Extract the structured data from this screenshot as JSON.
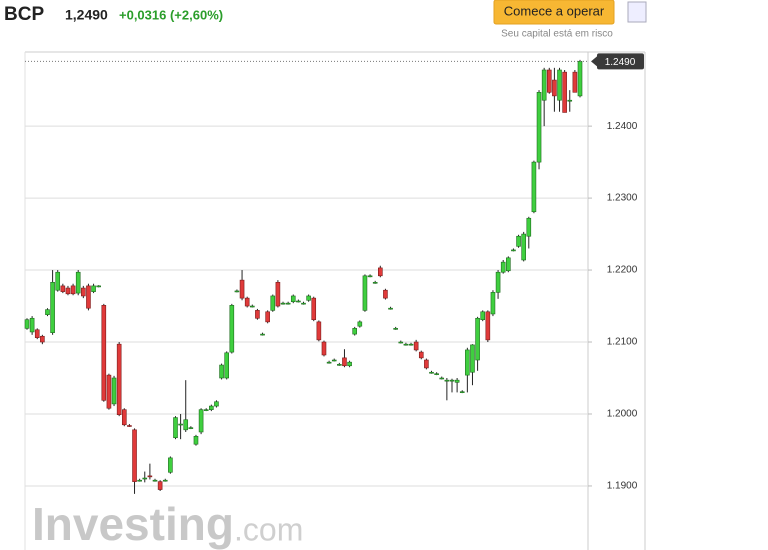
{
  "header": {
    "symbol": "BCP",
    "price": "1,2490",
    "change": "+0,0316 (+2,60%)",
    "button": "Comece a operar",
    "risk": "Seu capital está em risco"
  },
  "watermark": {
    "brand": "Investing",
    "suffix": ".com"
  },
  "chart_data": {
    "type": "candlestick",
    "up_color": "#3fcf3f",
    "down_color": "#e03a3a",
    "ylim": [
      1.1811,
      1.2503
    ],
    "yticks": [
      {
        "value": 1.19,
        "label": "1.1900"
      },
      {
        "value": 1.2,
        "label": "1.2000"
      },
      {
        "value": 1.21,
        "label": "1.2100"
      },
      {
        "value": 1.22,
        "label": "1.2200"
      },
      {
        "value": 1.23,
        "label": "1.2300"
      },
      {
        "value": 1.24,
        "label": "1.2400"
      }
    ],
    "grid": true,
    "last_price": {
      "value": 1.249,
      "label": "1.2490"
    },
    "open": [
      1.2119,
      1.2114,
      1.2117,
      1.2108,
      1.2138,
      1.2113,
      1.2172,
      1.2178,
      1.2175,
      1.2178,
      1.2168,
      1.2175,
      1.2178,
      1.217,
      1.2177,
      1.2151,
      1.2054,
      1.2014,
      1.2097,
      1.2006,
      1.1984,
      1.1978,
      1.1908,
      1.1911,
      1.1914,
      1.1908,
      1.1906,
      1.1908,
      1.1919,
      1.1967,
      1.1986,
      1.1978,
      1.1981,
      1.1958,
      1.1975,
      1.2006,
      1.2006,
      1.2011,
      1.205,
      1.205,
      1.2086,
      1.2171,
      1.2186,
      1.2161,
      1.215,
      1.2144,
      1.2111,
      1.2142,
      1.2144,
      1.2183,
      1.2154,
      1.2154,
      1.2156,
      1.2157,
      1.2154,
      1.2158,
      1.2161,
      1.2128,
      1.21,
      1.2072,
      1.2075,
      1.2069,
      1.2078,
      1.2067,
      1.2111,
      1.2122,
      1.2144,
      1.2192,
      1.2183,
      1.2203,
      1.2172,
      1.2147,
      1.2119,
      1.21,
      1.2097,
      1.2097,
      1.21,
      1.2086,
      1.2075,
      1.2058,
      1.2056,
      1.205,
      1.2047,
      1.2047,
      1.2044,
      1.2031,
      1.2054,
      1.2058,
      1.2075,
      1.2131,
      1.2142,
      1.2139,
      1.2169,
      1.2197,
      1.2199,
      1.2228,
      1.2233,
      1.2214,
      1.2247,
      1.2281,
      1.235,
      1.2436,
      1.2478,
      1.2464,
      1.2436,
      1.2475,
      1.2436,
      1.2475,
      1.2442
    ],
    "high": [
      1.2133,
      1.2136,
      1.2119,
      1.211,
      1.2147,
      1.22,
      1.22,
      1.2181,
      1.2178,
      1.2181,
      1.22,
      1.2178,
      1.2181,
      1.2181,
      1.2179,
      1.2153,
      1.2056,
      1.2053,
      1.21,
      1.2008,
      1.1986,
      1.198,
      1.191,
      1.192,
      1.1931,
      1.191,
      1.1908,
      1.191,
      1.1941,
      1.1997,
      1.2,
      1.2047,
      1.1983,
      1.1971,
      1.2008,
      1.2008,
      1.2013,
      1.2019,
      1.207,
      1.2087,
      1.2153,
      1.2173,
      1.22,
      1.2163,
      1.2152,
      1.2146,
      1.2113,
      1.2144,
      1.2166,
      1.2186,
      1.2156,
      1.2156,
      1.2166,
      1.2159,
      1.2156,
      1.2166,
      1.2163,
      1.213,
      1.2102,
      1.2074,
      1.2077,
      1.2071,
      1.209,
      1.2074,
      1.2121,
      1.213,
      1.2194,
      1.2194,
      1.2185,
      1.2206,
      1.2174,
      1.2149,
      1.2121,
      1.2102,
      1.2099,
      1.2099,
      1.2103,
      1.2088,
      1.2077,
      1.206,
      1.2058,
      1.2052,
      1.205,
      1.2049,
      1.205,
      1.2033,
      1.2092,
      1.2097,
      1.2135,
      1.2144,
      1.2144,
      1.2172,
      1.22,
      1.2214,
      1.2219,
      1.223,
      1.2249,
      1.2253,
      1.2274,
      1.2352,
      1.245,
      1.2481,
      1.2481,
      1.2481,
      1.2481,
      1.2478,
      1.245,
      1.2478,
      1.2492
    ],
    "low": [
      1.2117,
      1.211,
      1.2104,
      1.2097,
      1.2136,
      1.211,
      1.217,
      1.2168,
      1.2165,
      1.2165,
      1.2165,
      1.2161,
      1.2144,
      1.2168,
      1.2176,
      1.2017,
      1.2006,
      1.2011,
      1.1997,
      1.1983,
      1.1982,
      1.1889,
      1.1906,
      1.1905,
      1.1909,
      1.1906,
      1.1893,
      1.1906,
      1.1917,
      1.1965,
      1.1965,
      1.1975,
      1.1979,
      1.1956,
      1.1972,
      1.2004,
      1.2004,
      1.2009,
      1.2048,
      1.2048,
      1.2084,
      1.2169,
      1.2158,
      1.2148,
      1.2148,
      1.2131,
      1.2109,
      1.2126,
      1.2142,
      1.2148,
      1.2152,
      1.2152,
      1.2154,
      1.2155,
      1.2152,
      1.2156,
      1.2129,
      1.2101,
      1.208,
      1.207,
      1.2073,
      1.2067,
      1.2065,
      1.2065,
      1.2109,
      1.212,
      1.2142,
      1.219,
      1.2181,
      1.219,
      1.2159,
      1.2145,
      1.2117,
      1.2098,
      1.2095,
      1.2095,
      1.2087,
      1.2076,
      1.2062,
      1.2056,
      1.2054,
      1.2048,
      1.2019,
      1.203,
      1.203,
      1.2029,
      1.203,
      1.204,
      1.206,
      1.2129,
      1.21,
      1.2136,
      1.216,
      1.2195,
      1.2197,
      1.2226,
      1.2231,
      1.2212,
      1.223,
      1.2279,
      1.234,
      1.24,
      1.2445,
      1.242,
      1.242,
      1.2419,
      1.242,
      1.2447,
      1.244
    ],
    "close": [
      1.2131,
      1.2133,
      1.2106,
      1.21,
      1.2145,
      1.2183,
      1.2197,
      1.217,
      1.2167,
      1.2167,
      1.2197,
      1.2164,
      1.2147,
      1.2178,
      1.2178,
      1.2019,
      1.2008,
      1.205,
      1.1999,
      1.1985,
      1.1983,
      1.1906,
      1.1908,
      1.1911,
      1.1913,
      1.1908,
      1.1895,
      1.1908,
      1.1939,
      1.1995,
      1.1986,
      1.1992,
      1.1981,
      1.1969,
      1.2006,
      1.2006,
      1.2011,
      1.2017,
      1.2068,
      1.2085,
      1.2151,
      1.2171,
      1.2161,
      1.215,
      1.215,
      1.2133,
      1.2111,
      1.2128,
      1.2164,
      1.215,
      1.2154,
      1.2154,
      1.2164,
      1.2157,
      1.2154,
      1.2164,
      1.2131,
      1.2103,
      1.2082,
      1.2072,
      1.2075,
      1.2069,
      1.2067,
      1.2072,
      1.2119,
      1.2128,
      1.2192,
      1.2192,
      1.2183,
      1.2192,
      1.2161,
      1.2147,
      1.2119,
      1.21,
      1.2097,
      1.2097,
      1.2089,
      1.2078,
      1.2064,
      1.2058,
      1.2056,
      1.205,
      1.2047,
      1.2047,
      1.2047,
      1.2031,
      1.2089,
      1.2096,
      1.2133,
      1.2142,
      1.2103,
      1.2169,
      1.2197,
      1.2211,
      1.2217,
      1.2228,
      1.2247,
      1.225,
      1.2272,
      1.235,
      1.2447,
      1.2478,
      1.2447,
      1.2442,
      1.2478,
      1.2419,
      1.2436,
      1.2447,
      1.249
    ]
  }
}
